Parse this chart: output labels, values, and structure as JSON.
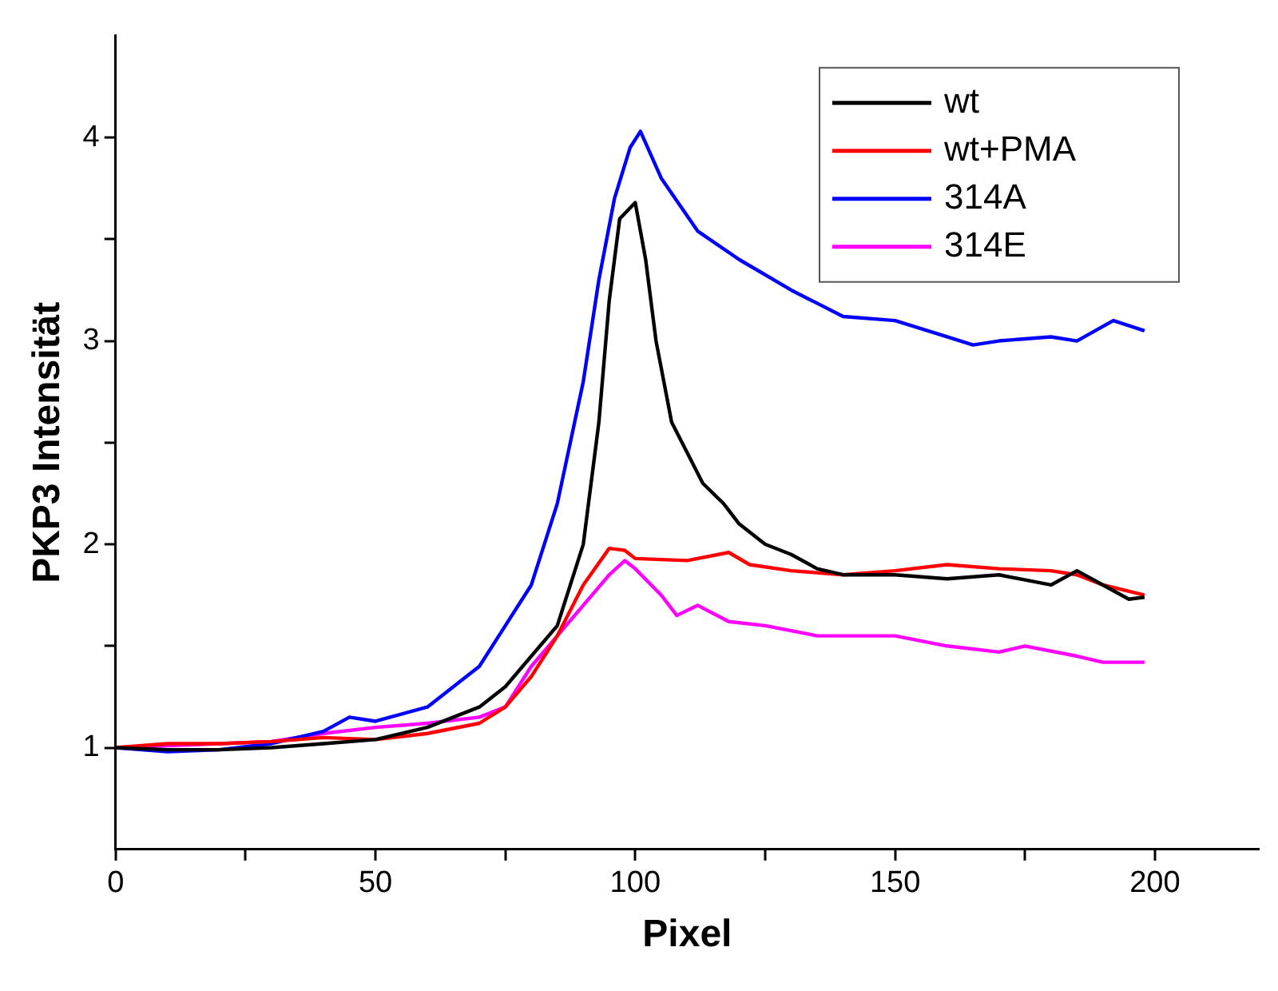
{
  "chart_data": {
    "type": "line",
    "xlabel": "Pixel",
    "ylabel": "PKP3 Intensität",
    "xlim": [
      0,
      220
    ],
    "ylim": [
      0.5,
      4.5
    ],
    "xticks": [
      0,
      {
        "value": 25,
        "label": null
      },
      50,
      {
        "value": 75,
        "label": null
      },
      100,
      {
        "value": 125,
        "label": null
      },
      150,
      {
        "value": 175,
        "label": null
      },
      200
    ],
    "yticks": [
      1,
      {
        "value": 1.5,
        "label": null
      },
      2,
      {
        "value": 2.5,
        "label": null
      },
      3,
      {
        "value": 3.5,
        "label": null
      },
      4
    ],
    "legend": "top right",
    "grid": false,
    "marker": "none",
    "line_style": "solid",
    "series": [
      {
        "name": "wt",
        "color": "#000000",
        "x": [
          0,
          10,
          20,
          30,
          40,
          50,
          60,
          70,
          75,
          80,
          85,
          90,
          93,
          95,
          97,
          100,
          102,
          104,
          107,
          110,
          113,
          117,
          120,
          125,
          130,
          135,
          140,
          150,
          160,
          170,
          180,
          185,
          190,
          195,
          198
        ],
        "values": [
          1,
          0.99,
          0.99,
          1,
          1.02,
          1.04,
          1.1,
          1.2,
          1.3,
          1.45,
          1.6,
          2.0,
          2.6,
          3.2,
          3.6,
          3.68,
          3.4,
          3.0,
          2.6,
          2.45,
          2.3,
          2.2,
          2.1,
          2.0,
          1.95,
          1.88,
          1.85,
          1.85,
          1.83,
          1.85,
          1.8,
          1.87,
          1.8,
          1.73,
          1.74
        ]
      },
      {
        "name": "wt+PMA",
        "color": "#ff0000",
        "x": [
          0,
          10,
          20,
          30,
          40,
          50,
          60,
          70,
          75,
          80,
          85,
          90,
          95,
          98,
          100,
          110,
          118,
          122,
          130,
          140,
          150,
          160,
          170,
          180,
          185,
          190,
          198
        ],
        "values": [
          1,
          1.02,
          1.02,
          1.03,
          1.05,
          1.04,
          1.07,
          1.12,
          1.2,
          1.35,
          1.55,
          1.8,
          1.98,
          1.97,
          1.93,
          1.92,
          1.96,
          1.9,
          1.87,
          1.85,
          1.87,
          1.9,
          1.88,
          1.87,
          1.85,
          1.8,
          1.75
        ]
      },
      {
        "name": "314A",
        "color": "#0000ff",
        "x": [
          0,
          10,
          20,
          30,
          40,
          45,
          50,
          60,
          65,
          70,
          75,
          80,
          85,
          90,
          93,
          96,
          99,
          101,
          105,
          112,
          120,
          130,
          140,
          150,
          160,
          165,
          170,
          180,
          185,
          192,
          198
        ],
        "values": [
          1,
          0.98,
          0.99,
          1.02,
          1.08,
          1.15,
          1.13,
          1.2,
          1.3,
          1.4,
          1.6,
          1.8,
          2.2,
          2.8,
          3.3,
          3.7,
          3.95,
          4.03,
          3.8,
          3.54,
          3.4,
          3.25,
          3.12,
          3.1,
          3.02,
          2.98,
          3.0,
          3.02,
          3.0,
          3.1,
          3.05
        ]
      },
      {
        "name": "314E",
        "color": "#ff00ff",
        "x": [
          0,
          10,
          20,
          30,
          40,
          50,
          60,
          70,
          75,
          80,
          85,
          90,
          95,
          98,
          100,
          105,
          108,
          112,
          118,
          125,
          135,
          150,
          160,
          170,
          175,
          185,
          190,
          198
        ],
        "values": [
          1,
          1.01,
          1.02,
          1.03,
          1.07,
          1.1,
          1.12,
          1.15,
          1.2,
          1.4,
          1.55,
          1.7,
          1.85,
          1.92,
          1.88,
          1.75,
          1.65,
          1.7,
          1.62,
          1.6,
          1.55,
          1.55,
          1.5,
          1.47,
          1.5,
          1.45,
          1.42,
          1.42
        ]
      }
    ]
  }
}
